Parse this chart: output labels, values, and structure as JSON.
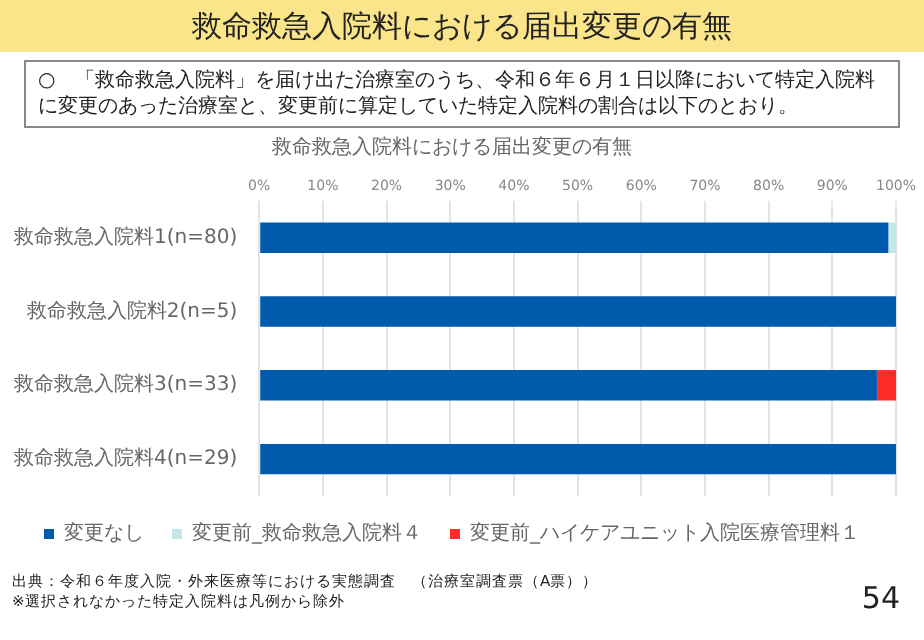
{
  "chart_data": {
    "type": "bar",
    "orientation": "horizontal",
    "stacked": true,
    "title": "救命救急入院料における届出変更の有無",
    "subtitle": "○　「救命救急入院料」を届け出た治療室のうち、令和６年６月１日以降において特定入院料に変更のあった治療室と、変更前に算定していた特定入院料の割合は以下のとおり。",
    "categories": [
      "救命救急入院料1(n=80)",
      "救命救急入院料2(n=5)",
      "救命救急入院料3(n=33)",
      "救命救急入院料4(n=29)"
    ],
    "series": [
      {
        "name": "変更なし",
        "color": "#005bac",
        "values": [
          98.8,
          100,
          97,
          100
        ]
      },
      {
        "name": "変更前_救命救急入院料４",
        "color": "#c5e6e6",
        "values": [
          1.2,
          0,
          0,
          0
        ]
      },
      {
        "name": "変更前_ハイケアユニット入院医療管理料１",
        "color": "#ff2b2b",
        "values": [
          0,
          0,
          3,
          0
        ]
      }
    ],
    "xlim": [
      0,
      100
    ],
    "xticks": [
      {
        "value": 0,
        "label": "0%"
      },
      {
        "value": 10,
        "label": "10%"
      },
      {
        "value": 20,
        "label": "20%"
      },
      {
        "value": 30,
        "label": "30%"
      },
      {
        "value": 40,
        "label": "40%"
      },
      {
        "value": 50,
        "label": "50%"
      },
      {
        "value": 60,
        "label": "60%"
      },
      {
        "value": 70,
        "label": "70%"
      },
      {
        "value": 80,
        "label": "80%"
      },
      {
        "value": 90,
        "label": "90%"
      },
      {
        "value": 100,
        "label": "100%"
      }
    ],
    "grid": "x",
    "legend": "bottom",
    "annotations": [
      "出典：令和６年度入院・外来医療等における実態調査　（治療室調査票（A票））",
      "※選択されなかった特定入院料は凡例から除外",
      "54"
    ]
  }
}
